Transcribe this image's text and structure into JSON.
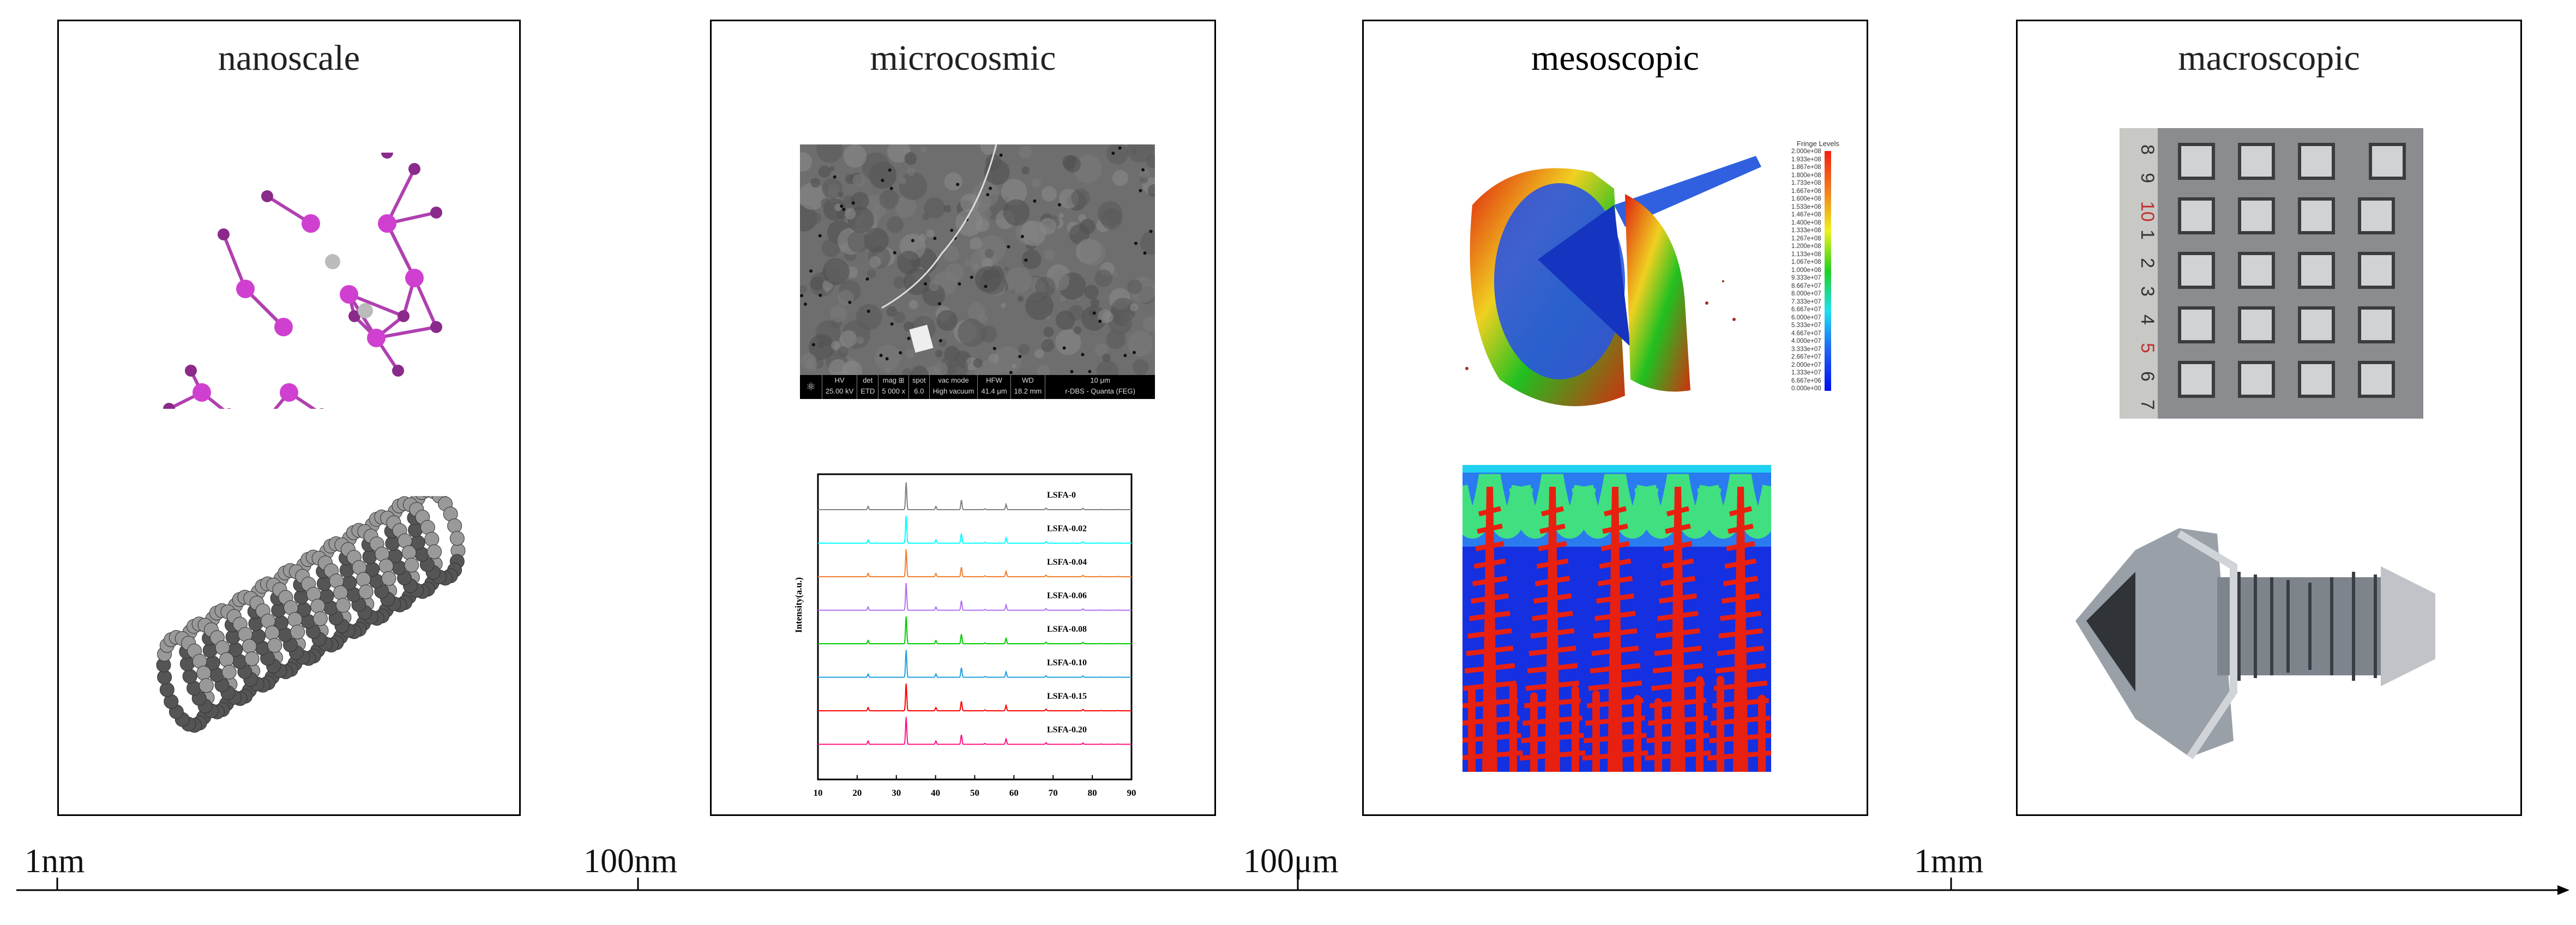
{
  "panels": [
    {
      "title": "nanoscale"
    },
    {
      "title": "microcosmic"
    },
    {
      "title": "mesoscopic"
    },
    {
      "title": "macroscopic"
    }
  ],
  "scale_axis": {
    "labels": [
      "1nm",
      "100nm",
      "100μm",
      "1mm"
    ]
  },
  "sem": {
    "fields": [
      {
        "k": "HV",
        "v": "25.00 kV"
      },
      {
        "k": "det",
        "v": "ETD"
      },
      {
        "k": "mag ⊞",
        "v": "5 000 x"
      },
      {
        "k": "spot",
        "v": "6.0"
      },
      {
        "k": "vac mode",
        "v": "High vacuum"
      },
      {
        "k": "HFW",
        "v": "41.4 μm"
      },
      {
        "k": "WD",
        "v": "18.2 mm"
      }
    ],
    "scale": "10 μm",
    "instrument": "r-DBS - Quanta (FEG)"
  },
  "fringe": {
    "title": "Fringe Levels",
    "levels": [
      "2.000e+08",
      "1.933e+08",
      "1.867e+08",
      "1.800e+08",
      "1.733e+08",
      "1.667e+08",
      "1.600e+08",
      "1.533e+08",
      "1.467e+08",
      "1.400e+08",
      "1.333e+08",
      "1.267e+08",
      "1.200e+08",
      "1.133e+08",
      "1.067e+08",
      "1.000e+08",
      "9.333e+07",
      "8.667e+07",
      "8.000e+07",
      "7.333e+07",
      "6.667e+07",
      "6.000e+07",
      "5.333e+07",
      "4.667e+07",
      "4.000e+07",
      "3.333e+07",
      "2.667e+07",
      "2.000e+07",
      "1.333e+07",
      "6.667e+06",
      "0.000e+00"
    ]
  },
  "photo": {
    "ruler_digits": [
      "8",
      "9",
      "10",
      "1",
      "2",
      "3",
      "4",
      "5",
      "6",
      "7"
    ]
  },
  "chart_data": {
    "type": "line",
    "xlabel": "",
    "ylabel": "Intensity(a.u.)",
    "xlim": [
      10,
      90
    ],
    "xticks": [
      10,
      20,
      30,
      40,
      50,
      60,
      70,
      80,
      90
    ],
    "peaks": [
      [
        22.8,
        0.12
      ],
      [
        32.5,
        1.0
      ],
      [
        40.1,
        0.12
      ],
      [
        46.6,
        0.35
      ],
      [
        52.6,
        0.03
      ],
      [
        58.0,
        0.2
      ],
      [
        68.2,
        0.06
      ],
      [
        77.6,
        0.05
      ],
      [
        82.2,
        0.01
      ],
      [
        86.5,
        0.01
      ]
    ],
    "series": [
      {
        "name": "LSFA-0",
        "color": "#808080"
      },
      {
        "name": "LSFA-0.02",
        "color": "#00ffff"
      },
      {
        "name": "LSFA-0.04",
        "color": "#f08030"
      },
      {
        "name": "LSFA-0.06",
        "color": "#b070f0"
      },
      {
        "name": "LSFA-0.08",
        "color": "#00cc00"
      },
      {
        "name": "LSFA-0.10",
        "color": "#20a0e0"
      },
      {
        "name": "LSFA-0.15",
        "color": "#ff0000"
      },
      {
        "name": "LSFA-0.20",
        "color": "#ff1080"
      }
    ]
  }
}
